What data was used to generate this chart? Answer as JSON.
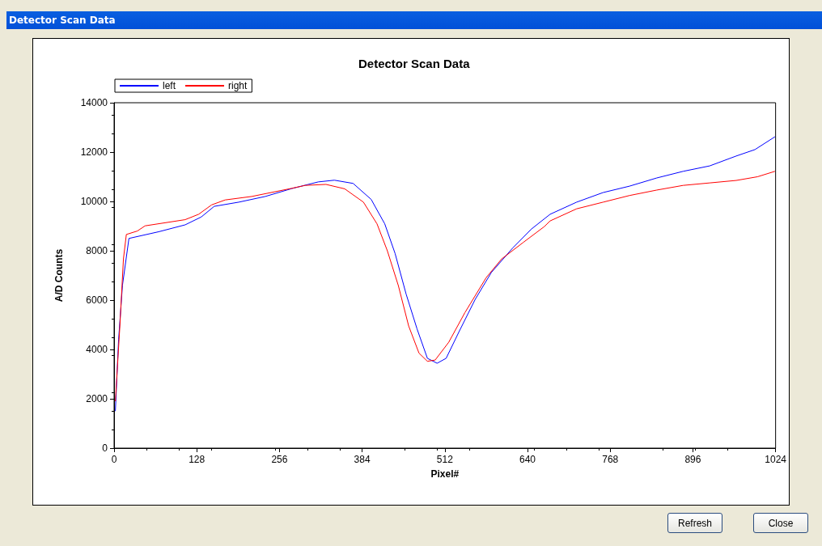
{
  "chart_data": {
    "type": "line",
    "title": "Detector Scan Data",
    "xlabel": "Pixel#",
    "ylabel": "A/D Counts",
    "xlim": [
      0,
      1024
    ],
    "xticks": [
      0,
      128,
      256,
      384,
      512,
      640,
      768,
      896,
      1024
    ],
    "ylim": [
      0,
      14000
    ],
    "yticks": [
      0,
      2000,
      4000,
      6000,
      8000,
      10000,
      12000,
      14000
    ],
    "grid": false,
    "legend": "top left",
    "marker": "none",
    "line_style": "solid",
    "annotations": [
      "Refresh",
      "Close"
    ],
    "series": [
      {
        "name": "left",
        "color": "#0000ff",
        "x": [
          2,
          7,
          13,
          23,
          69,
          110,
          135,
          155,
          193,
          234,
          275,
          316,
          341,
          370,
          398,
          419,
          435,
          452,
          469,
          485,
          500,
          514,
          534,
          559,
          584,
          617,
          646,
          675,
          716,
          757,
          798,
          840,
          881,
          922,
          963,
          992,
          1023
        ],
        "values": [
          1500,
          4400,
          6600,
          8500,
          8770,
          9050,
          9370,
          9800,
          9970,
          10200,
          10520,
          10790,
          10860,
          10730,
          10080,
          9090,
          7890,
          6250,
          4830,
          3640,
          3440,
          3640,
          4720,
          6030,
          7120,
          8110,
          8880,
          9480,
          9970,
          10360,
          10620,
          10950,
          11220,
          11440,
          11840,
          12100,
          12620
        ]
      },
      {
        "name": "right",
        "color": "#ff0000",
        "x": [
          2,
          9,
          14.5,
          19,
          36,
          48,
          110,
          131,
          151,
          172,
          213,
          275,
          296,
          328,
          357,
          386,
          407,
          423,
          440,
          456,
          472,
          485,
          497,
          518,
          543,
          576,
          600,
          633,
          666,
          675,
          716,
          757,
          798,
          840,
          881,
          922,
          963,
          996,
          1023
        ],
        "values": [
          1900,
          4950,
          7670,
          8660,
          8800,
          9010,
          9260,
          9480,
          9860,
          10060,
          10200,
          10530,
          10650,
          10690,
          10510,
          9970,
          9090,
          8000,
          6590,
          4950,
          3850,
          3520,
          3570,
          4290,
          5490,
          6910,
          7670,
          8330,
          8980,
          9210,
          9700,
          9970,
          10240,
          10460,
          10650,
          10750,
          10850,
          11000,
          11220
        ]
      }
    ]
  }
}
